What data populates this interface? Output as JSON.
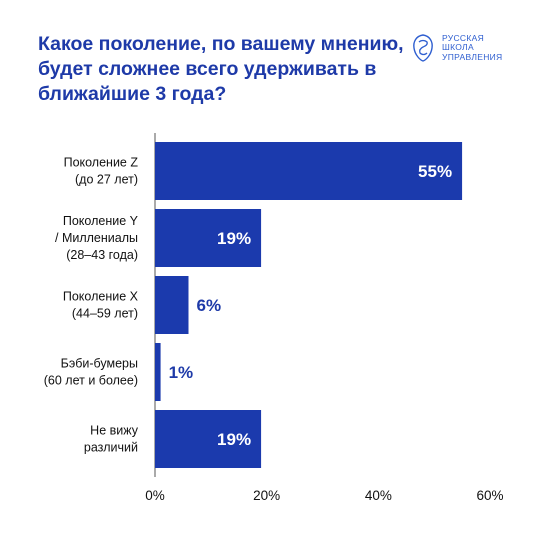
{
  "title": "Какое поколение, по вашему мнению, будет сложнее всего удерживать в ближайшие 3 года?",
  "logo": {
    "lines": [
      "РУССКАЯ",
      "ШКОЛА",
      "УПРАВЛЕНИЯ"
    ]
  },
  "colors": {
    "bar": "#1b3aad",
    "title": "#1e3aa8",
    "axis": "#555555"
  },
  "chart_data": {
    "type": "bar",
    "orientation": "horizontal",
    "categories": [
      [
        "Поколение Z",
        "(до 27 лет)"
      ],
      [
        "Поколение Y",
        "/ Миллениалы",
        "(28–43 года)"
      ],
      [
        "Поколение X",
        "(44–59 лет)"
      ],
      [
        "Бэби-бумеры",
        "(60 лет и более)"
      ],
      [
        "Не вижу",
        "различий"
      ]
    ],
    "values": [
      55,
      19,
      6,
      1,
      19
    ],
    "value_labels": [
      "55%",
      "19%",
      "6%",
      "1%",
      "19%"
    ],
    "xlim": [
      0,
      60
    ],
    "x_ticks": [
      0,
      20,
      40,
      60
    ],
    "x_tick_labels": [
      "0%",
      "20%",
      "40%",
      "60%"
    ],
    "grid": false,
    "legend": "none"
  }
}
